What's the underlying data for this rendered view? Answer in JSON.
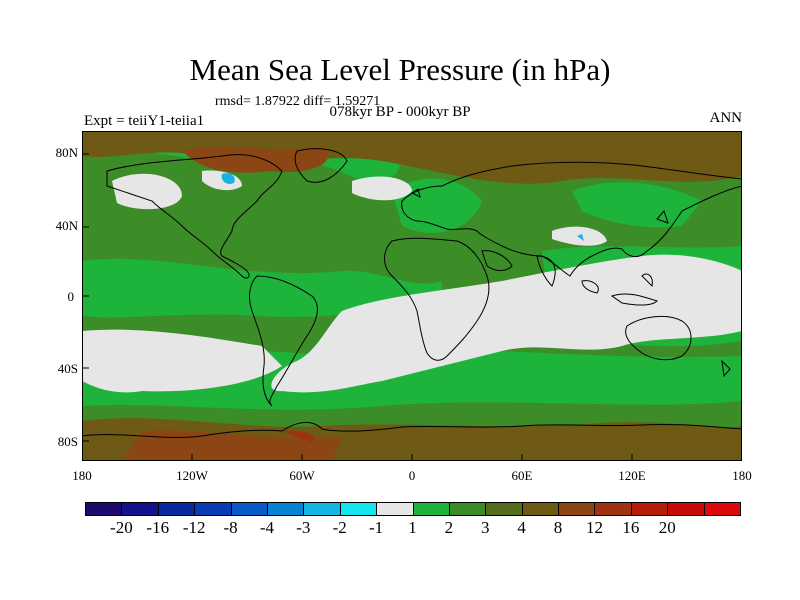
{
  "title": "Mean Sea Level Pressure (in hPa)",
  "stats": "rmsd= 1.87922  diff= 1.59271",
  "experiment": "Expt = teiiY1-teiia1",
  "period": "078kyr BP - 000kyr BP",
  "season": "ANN",
  "lat_labels": [
    "80N",
    "40N",
    "0",
    "40S",
    "80S"
  ],
  "lon_labels": [
    "180",
    "120W",
    "60W",
    "0",
    "60E",
    "120E",
    "180"
  ],
  "colorbar": {
    "colors": [
      "#1e0a6e",
      "#14128c",
      "#0a28a0",
      "#0a3cb4",
      "#0a5ac8",
      "#0a82d2",
      "#14b4e6",
      "#14e6f0",
      "#e6e6e6",
      "#1eb43c",
      "#3c8c28",
      "#556e1e",
      "#6e5a14",
      "#8c4614",
      "#a03214",
      "#b41e0a",
      "#c80a0a",
      "#dc0a0a"
    ],
    "labels": [
      "-20",
      "-16",
      "-12",
      "-8",
      "-4",
      "-3",
      "-2",
      "-1",
      "1",
      "2",
      "3",
      "4",
      "8",
      "12",
      "16",
      "20"
    ]
  },
  "legend_colors": {
    "ocean_base": "#3c8c28",
    "neutral": "#e6e6e6",
    "positive_low": "#1eb43c",
    "positive_high": "#6e5a14",
    "negative": "#14b4e6"
  }
}
